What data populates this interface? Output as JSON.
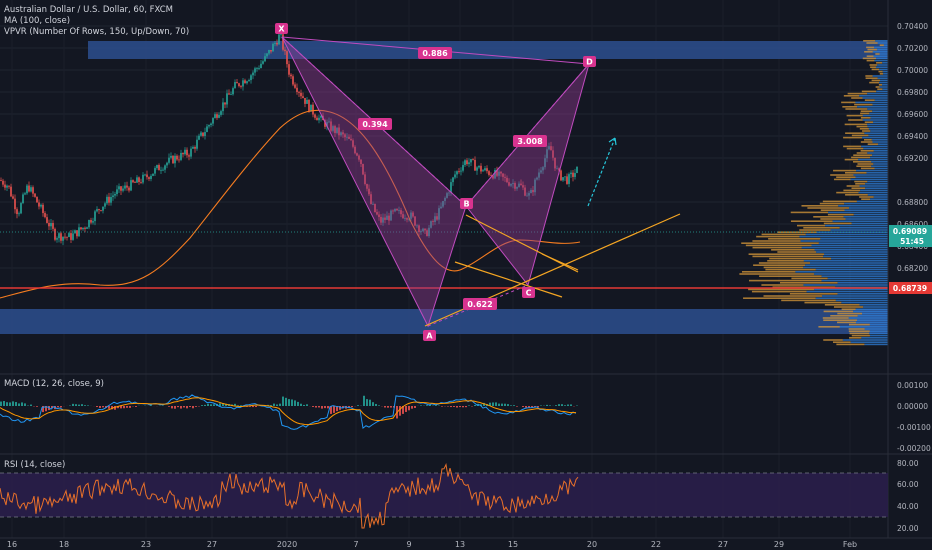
{
  "legend": {
    "symbol": "Australian Dollar / U.S. Dollar, 60, FXCM",
    "ma": "MA (100, close)",
    "vpvr": "VPVR (Number Of Rows, 150, Up/Down, 70)",
    "macd": "MACD (12, 26, close, 9)",
    "rsi": "RSI (14, close)"
  },
  "colors": {
    "background": "#131722",
    "grid": "#1f2430",
    "pattern_fill": "#8e3a8e",
    "pattern_edge": "#c04bbf",
    "pattern_point": "#d8338f",
    "zone": "#2d4f8e",
    "ma_line": "#f57c20",
    "trend_line": "#f5a623",
    "price_line": "#26a69a",
    "support_line": "#e53935",
    "projection": "#26c6da",
    "up_candle": "#26a69a",
    "down_candle": "#ef5350",
    "macd_line": "#2196f3",
    "signal_line": "#ff9800",
    "rsi_line": "#e8702a",
    "rsi_band": "#2a1e4a"
  },
  "price_axis": {
    "ticks": [
      "0.70400",
      "0.70200",
      "0.70000",
      "0.69800",
      "0.69600",
      "0.69400",
      "0.69200",
      "0.68800",
      "0.68600",
      "0.68400",
      "0.68200"
    ],
    "current_price": "0.69089",
    "countdown": "51:45",
    "support_price": "0.68739"
  },
  "macd_axis": {
    "ticks": [
      "0.00100",
      "0.00000",
      "-0.00100",
      "-0.00200"
    ]
  },
  "rsi_axis": {
    "ticks": [
      "80.00",
      "60.00",
      "40.00",
      "20.00"
    ]
  },
  "date_axis": {
    "ticks": [
      "16",
      "18",
      "23",
      "27",
      "2020",
      "7",
      "9",
      "13",
      "15",
      "20",
      "22",
      "27",
      "29",
      "Feb"
    ]
  },
  "pattern": {
    "points": [
      "X",
      "A",
      "B",
      "C",
      "D"
    ],
    "ratios": [
      "0.886",
      "0.394",
      "3.008",
      "0.622"
    ]
  },
  "chart_data": {
    "type": "line",
    "title": "Australian Dollar / U.S. Dollar, 60, FXCM",
    "instrument": "AUD/USD",
    "timeframe": "60",
    "x": [
      "16",
      "18",
      "23",
      "27",
      "2020",
      "7",
      "9",
      "13",
      "15"
    ],
    "series": [
      {
        "name": "AUD/USD",
        "values": [
          0.6875,
          0.6852,
          0.6886,
          0.6968,
          0.7027,
          0.6872,
          0.6852,
          0.6912,
          0.6908
        ]
      }
    ],
    "ylim": [
      0.682,
      0.705
    ],
    "harmonic_pattern": {
      "points": [
        {
          "label": "X",
          "date": "2020",
          "price": 0.7034
        },
        {
          "label": "A",
          "date": "10",
          "price": 0.6848
        },
        {
          "label": "B",
          "date": "13",
          "price": 0.692
        },
        {
          "label": "C",
          "date": "16",
          "price": 0.6875
        },
        {
          "label": "D",
          "date": "20",
          "price": 0.7015
        }
      ],
      "ratios": [
        0.886,
        0.394,
        3.008,
        0.622
      ]
    },
    "zones": [
      {
        "from": 0.7017,
        "to": 0.7035
      },
      {
        "from": 0.6845,
        "to": 0.6865
      }
    ],
    "current_price": 0.69089,
    "support_level": 0.68739,
    "macd": {
      "params": "12, 26, close, 9",
      "ylim": [
        -0.0025,
        0.0012
      ]
    },
    "rsi": {
      "params": "14, close",
      "ylim": [
        15,
        85
      ],
      "bands": [
        30,
        70
      ]
    }
  }
}
